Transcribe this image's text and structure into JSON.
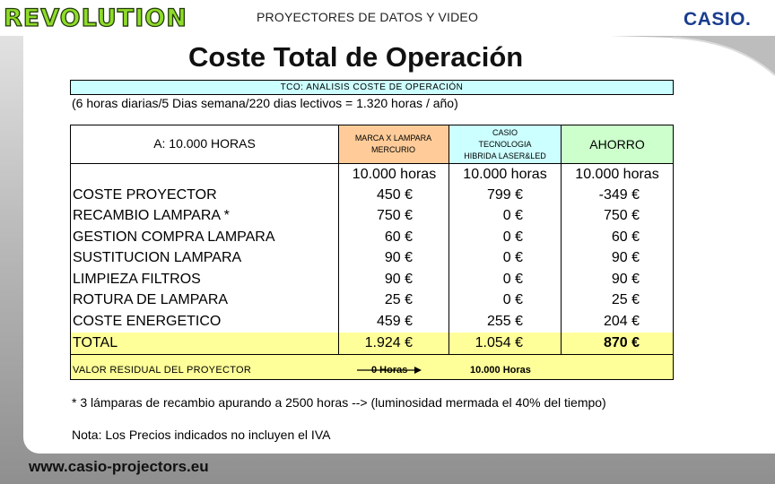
{
  "header": {
    "logo_text": "REVOLUTION",
    "title": "PROYECTORES DE DATOS Y VIDEO",
    "brand": "CASIO",
    "brand_dot": "."
  },
  "page_title": "Coste Total de Operación",
  "tco_title": "TCO: ANALISIS COSTE DE OPERACIÓN",
  "assumption": "(6 horas diarias/5 Dias semana/220 dias lectivos = 1.320 horas / año)",
  "table": {
    "corner_label": "A: 10.000 HORAS",
    "col_mercurio": [
      "MARCA X LAMPARA",
      "MERCURIO"
    ],
    "col_casio": [
      "CASIO",
      "TECNOLOGIA",
      "HIBRIDA LASER&LED"
    ],
    "col_ahorro": "AHORRO",
    "hours_row": [
      "10.000 horas",
      "10.000 horas",
      "10.000 horas"
    ],
    "rows": [
      {
        "label": "COSTE PROYECTOR",
        "mercurio": "450 €",
        "casio": "799 €",
        "ahorro": "-349 €"
      },
      {
        "label": "RECAMBIO LAMPARA  *",
        "mercurio": "750 €",
        "casio": "0 €",
        "ahorro": "750 €"
      },
      {
        "label": "GESTION COMPRA LAMPARA",
        "mercurio": "60 €",
        "casio": "0 €",
        "ahorro": "60 €"
      },
      {
        "label": "SUSTITUCION LAMPARA",
        "mercurio": "90 €",
        "casio": "0 €",
        "ahorro": "90 €"
      },
      {
        "label": "LIMPIEZA FILTROS",
        "mercurio": "90 €",
        "casio": "0 €",
        "ahorro": "90 €"
      },
      {
        "label": "ROTURA DE LAMPARA",
        "mercurio": "25 €",
        "casio": "0 €",
        "ahorro": "25 €"
      },
      {
        "label": "COSTE ENERGETICO",
        "mercurio": "459 €",
        "casio": "255 €",
        "ahorro": "204 €"
      }
    ],
    "total": {
      "label": "TOTAL",
      "mercurio": "1.924 €",
      "casio": "1.054 €",
      "ahorro": "870 €"
    },
    "residual": {
      "label": "VALOR RESIDUAL DEL PROYECTOR",
      "mercurio": "0 Horas",
      "casio": "10.000 Horas"
    }
  },
  "footnote": "* 3 lámparas de recambio apurando a 2500 horas --> (luminosidad mermada el 40% del tiempo)",
  "nota": "Nota: Los Precios indicados no incluyen el IVA",
  "footer_url": "www.casio-projectors.eu",
  "colors": {
    "mercurio": "#ffcc99",
    "casio": "#ccffff",
    "ahorro": "#ccffcc",
    "total": "#ffff99",
    "brand": "#1a3d8f"
  }
}
